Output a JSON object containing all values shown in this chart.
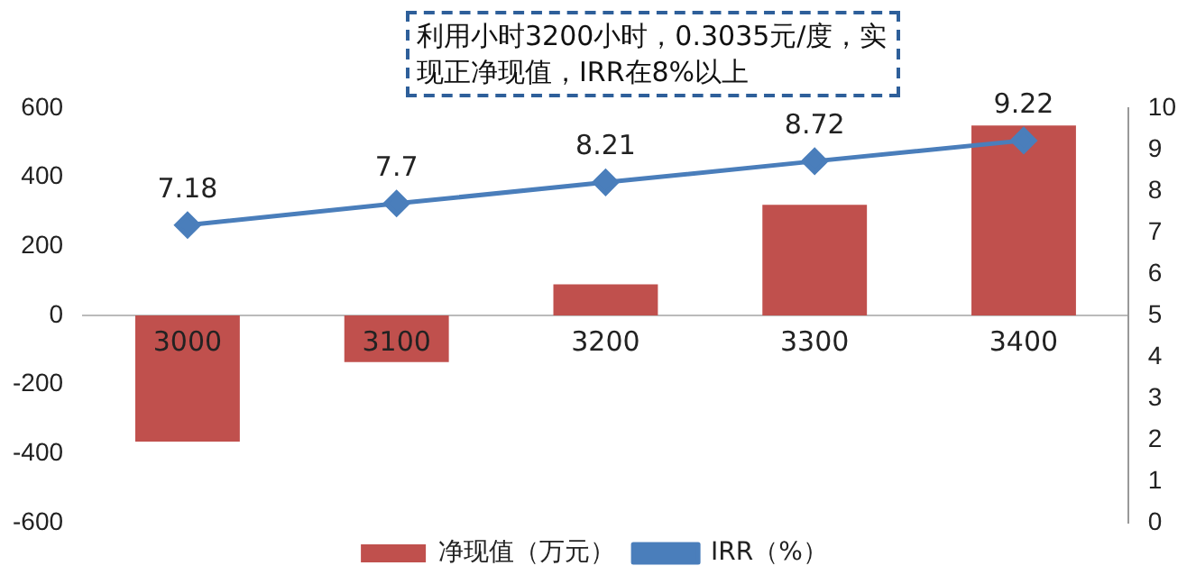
{
  "chart_data": {
    "type": "bar",
    "title": "利用小时3200小时，0.3035元/度，实现正净现值，IRR在8%以上",
    "categories": [
      "3000",
      "3100",
      "3200",
      "3300",
      "3400"
    ],
    "series": [
      {
        "name": "净现值（万元）",
        "color": "#c0504d",
        "values": [
          -365,
          -135,
          90,
          320,
          550
        ]
      },
      {
        "name": "IRR（%）",
        "type": "line",
        "axis": "y2",
        "color": "#4a7ebb",
        "values": [
          7.18,
          7.7,
          8.21,
          8.72,
          9.22
        ],
        "value_labels": [
          "7.18",
          "7.7",
          "8.21",
          "8.72",
          "9.22"
        ]
      }
    ],
    "ylim": [
      -600,
      600
    ],
    "yticks": [
      -600,
      -400,
      -200,
      0,
      200,
      400,
      600
    ],
    "y2lim": [
      0,
      10
    ],
    "y2ticks": [
      0,
      1,
      2,
      3,
      4,
      5,
      6,
      7,
      8,
      9,
      10
    ],
    "grid": false,
    "legend": "bottom",
    "marker": "diamond"
  }
}
